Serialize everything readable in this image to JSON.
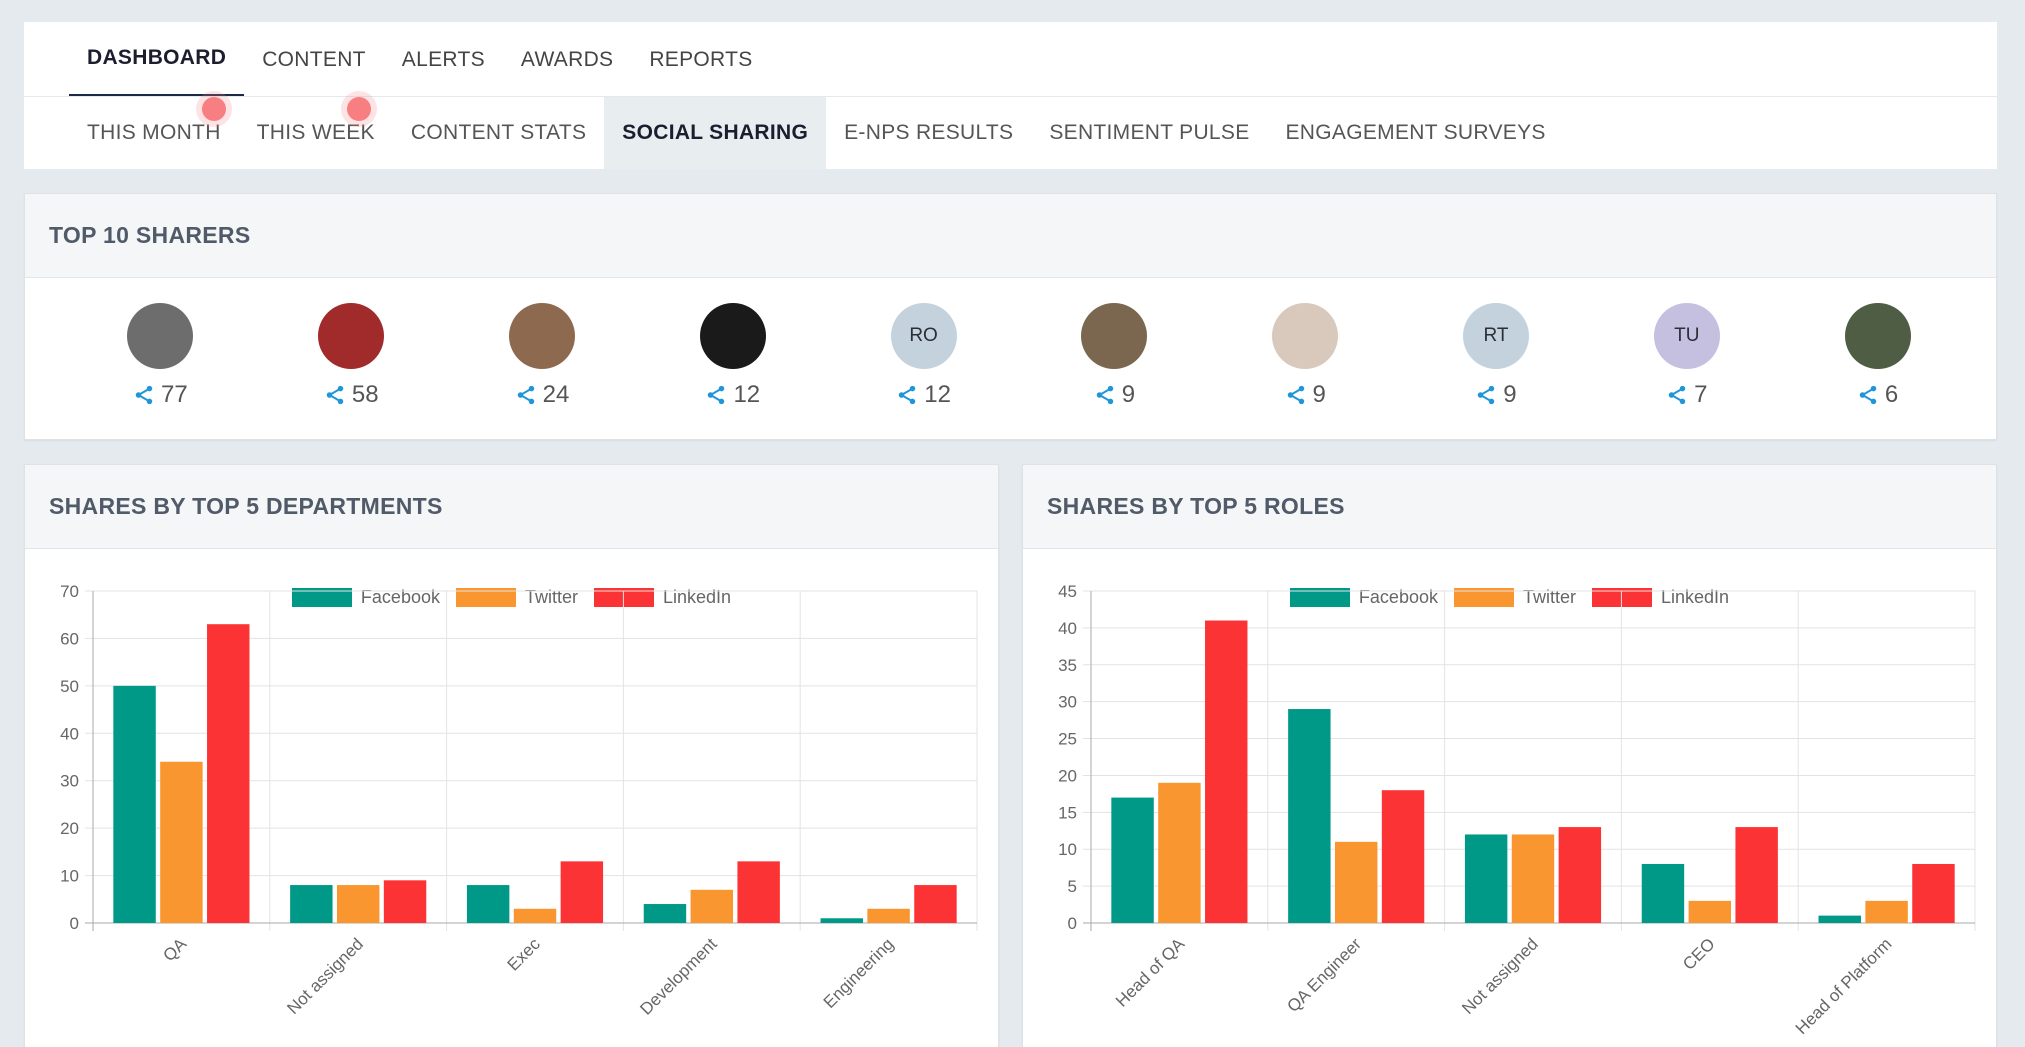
{
  "nav": {
    "main_tabs": [
      {
        "label": "DASHBOARD",
        "active": true
      },
      {
        "label": "CONTENT"
      },
      {
        "label": "ALERTS"
      },
      {
        "label": "AWARDS"
      },
      {
        "label": "REPORTS"
      }
    ],
    "sub_tabs": [
      {
        "label": "THIS MONTH"
      },
      {
        "label": "THIS WEEK"
      },
      {
        "label": "CONTENT STATS"
      },
      {
        "label": "SOCIAL SHARING",
        "active": true
      },
      {
        "label": "E-NPS RESULTS"
      },
      {
        "label": "SENTIMENT PULSE"
      },
      {
        "label": "ENGAGEMENT SURVEYS"
      }
    ]
  },
  "top_sharers": {
    "title": "TOP 10 SHARERS",
    "items": [
      {
        "initials": "",
        "count": "77",
        "avatar_color": "#6d6d6d"
      },
      {
        "initials": "",
        "count": "58",
        "avatar_color": "#a12a2a"
      },
      {
        "initials": "",
        "count": "24",
        "avatar_color": "#8d6a4f"
      },
      {
        "initials": "",
        "count": "12",
        "avatar_color": "#1a1a1a"
      },
      {
        "initials": "RO",
        "count": "12",
        "avatar_color": "#c3d2dc"
      },
      {
        "initials": "",
        "count": "9",
        "avatar_color": "#7b6650"
      },
      {
        "initials": "",
        "count": "9",
        "avatar_color": "#d9c9bd"
      },
      {
        "initials": "RT",
        "count": "9",
        "avatar_color": "#c3d2dc"
      },
      {
        "initials": "TU",
        "count": "7",
        "avatar_color": "#c5c0e0"
      },
      {
        "initials": "",
        "count": "6",
        "avatar_color": "#4e5d44"
      }
    ]
  },
  "departments": {
    "title": "SHARES BY TOP 5 DEPARTMENTS"
  },
  "roles": {
    "title": "SHARES BY TOP 5 ROLES"
  },
  "colors": {
    "facebook": "#009987",
    "twitter": "#f9962f",
    "linkedin": "#fc3334",
    "share_icon": "#1f96d8"
  },
  "chart_data": [
    {
      "type": "bar",
      "title": "SHARES BY TOP 5 DEPARTMENTS",
      "categories": [
        "QA",
        "Not assigned",
        "Exec",
        "Development",
        "Engineering"
      ],
      "series": [
        {
          "name": "Facebook",
          "values": [
            50,
            8,
            8,
            4,
            1
          ]
        },
        {
          "name": "Twitter",
          "values": [
            34,
            8,
            3,
            7,
            3
          ]
        },
        {
          "name": "LinkedIn",
          "values": [
            63,
            9,
            13,
            13,
            8
          ]
        }
      ],
      "ylim": [
        0,
        70
      ],
      "yticks": [
        0,
        10,
        20,
        30,
        40,
        50,
        60,
        70
      ],
      "grid": true,
      "legend": "top"
    },
    {
      "type": "bar",
      "title": "SHARES BY TOP 5 ROLES",
      "categories": [
        "Head of QA",
        "QA Engineer",
        "Not assigned",
        "CEO",
        "Head of Platform"
      ],
      "series": [
        {
          "name": "Facebook",
          "values": [
            17,
            29,
            12,
            8,
            1
          ]
        },
        {
          "name": "Twitter",
          "values": [
            19,
            11,
            12,
            3,
            3
          ]
        },
        {
          "name": "LinkedIn",
          "values": [
            41,
            18,
            13,
            13,
            8
          ]
        }
      ],
      "ylim": [
        0,
        45
      ],
      "yticks": [
        0,
        5,
        10,
        15,
        20,
        25,
        30,
        35,
        40,
        45
      ],
      "grid": true,
      "legend": "top"
    }
  ]
}
